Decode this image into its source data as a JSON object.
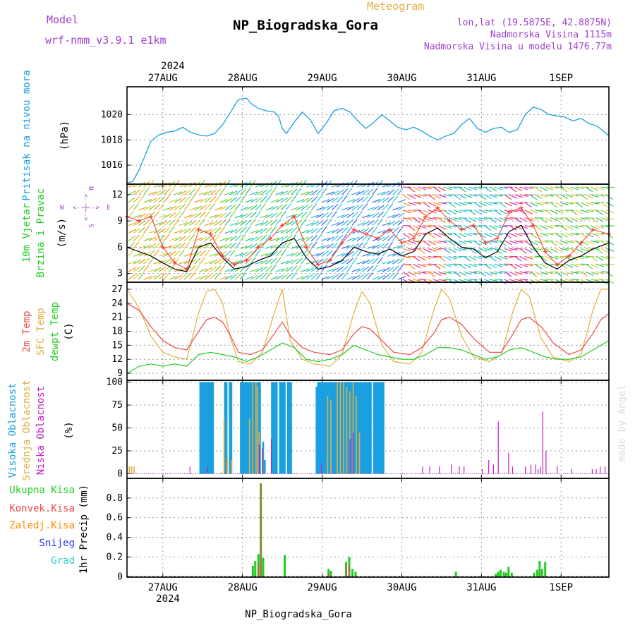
{
  "header": {
    "model_label": "Model",
    "model_name": "wrf-nmm_v3.9.1 e1km",
    "meteogram": "Meteogram",
    "station": "NP_Biogradska_Gora",
    "lonlat": "lon,lat (19.5875E, 42.8875N)",
    "elevation": "Nadmorska Visina 1115m",
    "model_elevation": "Nadmorska Visina u modelu 1476.77m",
    "year": "2024",
    "footer": "NP_Biogradska_Gora",
    "watermark": "made by Angel"
  },
  "colors": {
    "pressure": "#1aa0e0",
    "windspeed": "#000000",
    "gust": "#ff3030",
    "temp2m": "#f04848",
    "sfc_temp": "#e0b040",
    "dewpoint": "#22cc22",
    "cloud_high": "#1aa0e0",
    "cloud_mid": "#e0b040",
    "cloud_low": "#c020c0",
    "precip_total": "#22cc22",
    "precip_conv": "#f04848",
    "precip_frozen": "#ff8c00",
    "snow": "#3030ff",
    "hail": "#30d0d0"
  },
  "chart_data": [
    {
      "type": "line",
      "panel": "pressure",
      "ylabel": [
        "Pritisak na nivou mora",
        "(hPa)"
      ],
      "ylim": [
        1014.5,
        1022.2
      ],
      "yticks": [
        1016,
        1018,
        1020
      ],
      "x_dates": [
        "27AUG",
        "28AUG",
        "29AUG",
        "30AUG",
        "31AUG",
        "1SEP"
      ],
      "x_start_day": 26.55,
      "x_end_day": 32.6,
      "series": [
        {
          "x": [
            26.55,
            26.62,
            26.7,
            26.78,
            26.85,
            26.95,
            27.05,
            27.15,
            27.25,
            27.35,
            27.45,
            27.55,
            27.65,
            27.75,
            27.85,
            27.95,
            28.05,
            28.12,
            28.2,
            28.3,
            28.4,
            28.45,
            28.5,
            28.55,
            28.65,
            28.75,
            28.85,
            28.95,
            29.05,
            29.15,
            29.25,
            29.35,
            29.45,
            29.55,
            29.65,
            29.75,
            29.85,
            29.95,
            30.05,
            30.15,
            30.25,
            30.35,
            30.45,
            30.55,
            30.65,
            30.75,
            30.85,
            30.95,
            31.05,
            31.15,
            31.25,
            31.35,
            31.45,
            31.55,
            31.65,
            31.75,
            31.85,
            31.95,
            32.05,
            32.15,
            32.25,
            32.35,
            32.45,
            32.55,
            32.6
          ],
          "y": [
            1014.6,
            1014.7,
            1015.6,
            1016.8,
            1017.9,
            1018.4,
            1018.6,
            1018.7,
            1019.0,
            1018.6,
            1018.4,
            1018.3,
            1018.5,
            1019.2,
            1020.2,
            1021.2,
            1021.3,
            1020.8,
            1020.5,
            1020.3,
            1020.2,
            1019.9,
            1018.9,
            1018.5,
            1019.4,
            1020.2,
            1019.6,
            1018.5,
            1019.3,
            1020.3,
            1020.5,
            1020.2,
            1019.5,
            1018.9,
            1019.4,
            1020.0,
            1019.5,
            1019.0,
            1018.8,
            1019.0,
            1018.7,
            1018.3,
            1018.0,
            1018.3,
            1018.5,
            1019.2,
            1019.7,
            1018.9,
            1018.6,
            1018.9,
            1019.0,
            1018.6,
            1018.8,
            1020.0,
            1020.6,
            1020.4,
            1020.0,
            1019.9,
            1019.8,
            1019.5,
            1019.7,
            1019.3,
            1019.1,
            1018.6,
            1018.3
          ]
        }
      ]
    },
    {
      "type": "line",
      "panel": "wind",
      "ylabel": [
        "10m Vjetar",
        "Brzina i Pravac",
        "(m/s)"
      ],
      "compass": [
        "N",
        "<--|-->",
        "S",
        "W",
        "E"
      ],
      "ylim": [
        2.0,
        13.2
      ],
      "yticks": [
        3,
        6,
        9,
        12
      ],
      "series": [
        {
          "name": "speed",
          "x": [
            26.55,
            26.7,
            26.85,
            27.0,
            27.15,
            27.3,
            27.45,
            27.6,
            27.75,
            27.9,
            28.05,
            28.2,
            28.35,
            28.5,
            28.65,
            28.8,
            28.95,
            29.1,
            29.25,
            29.4,
            29.55,
            29.7,
            29.85,
            30.0,
            30.15,
            30.3,
            30.45,
            30.6,
            30.75,
            30.9,
            31.05,
            31.2,
            31.35,
            31.5,
            31.65,
            31.8,
            31.95,
            32.1,
            32.25,
            32.4,
            32.6
          ],
          "y": [
            6.0,
            5.5,
            5.0,
            4.2,
            3.5,
            3.2,
            6.0,
            6.5,
            4.8,
            3.5,
            3.8,
            4.5,
            5.0,
            6.5,
            7.0,
            4.8,
            3.5,
            3.8,
            4.5,
            6.0,
            5.5,
            5.2,
            5.8,
            5.0,
            5.5,
            7.5,
            8.2,
            7.0,
            6.0,
            5.8,
            4.8,
            5.5,
            7.8,
            8.5,
            6.0,
            4.2,
            3.5,
            4.5,
            5.0,
            5.8,
            6.5
          ]
        },
        {
          "name": "gust",
          "x": [
            26.55,
            26.7,
            26.85,
            27.0,
            27.15,
            27.3,
            27.45,
            27.6,
            27.75,
            27.9,
            28.05,
            28.2,
            28.35,
            28.5,
            28.65,
            28.8,
            28.95,
            29.1,
            29.25,
            29.4,
            29.55,
            29.7,
            29.85,
            30.0,
            30.15,
            30.3,
            30.45,
            30.6,
            30.75,
            30.9,
            31.05,
            31.2,
            31.35,
            31.5,
            31.65,
            31.8,
            31.95,
            32.1,
            32.25,
            32.4,
            32.6
          ],
          "y": [
            9.5,
            9.0,
            9.5,
            6.0,
            4.2,
            3.5,
            8.0,
            7.5,
            5.0,
            4.0,
            4.5,
            6.0,
            7.0,
            8.5,
            9.5,
            6.0,
            4.0,
            4.5,
            6.5,
            8.0,
            7.5,
            7.0,
            8.0,
            6.5,
            7.0,
            9.5,
            10.5,
            9.0,
            8.0,
            8.5,
            6.5,
            7.0,
            10.0,
            10.5,
            8.5,
            5.5,
            4.0,
            5.0,
            6.5,
            8.0,
            7.5
          ]
        }
      ]
    },
    {
      "type": "line",
      "panel": "temperature",
      "ylabel": [
        "2m Temp",
        "SFC Temp",
        "dewpt Temp",
        "(C)"
      ],
      "ylim": [
        7.5,
        28.5
      ],
      "yticks": [
        9,
        12,
        15,
        18,
        21,
        24,
        27
      ],
      "series": [
        {
          "name": "2m Temp",
          "x": [
            26.55,
            26.7,
            26.85,
            27.0,
            27.15,
            27.3,
            27.45,
            27.55,
            27.65,
            27.75,
            27.85,
            27.95,
            28.1,
            28.25,
            28.4,
            28.5,
            28.6,
            28.75,
            28.9,
            29.1,
            29.25,
            29.4,
            29.5,
            29.6,
            29.75,
            29.9,
            30.1,
            30.25,
            30.4,
            30.5,
            30.6,
            30.75,
            30.9,
            31.1,
            31.25,
            31.4,
            31.5,
            31.6,
            31.75,
            31.9,
            32.1,
            32.25,
            32.4,
            32.5,
            32.6
          ],
          "y": [
            24.0,
            22.5,
            19.0,
            16.0,
            14.5,
            14.0,
            18.0,
            20.5,
            21.0,
            20.0,
            17.0,
            13.5,
            13.0,
            14.0,
            17.5,
            20.0,
            17.0,
            14.5,
            13.5,
            13.0,
            14.0,
            17.5,
            19.0,
            18.5,
            16.0,
            13.5,
            13.0,
            14.5,
            17.5,
            20.5,
            21.0,
            19.5,
            16.5,
            13.5,
            13.5,
            17.5,
            20.5,
            21.0,
            19.0,
            15.5,
            13.0,
            14.0,
            17.5,
            20.5,
            21.8
          ]
        },
        {
          "name": "SFC Temp",
          "x": [
            26.55,
            26.7,
            26.85,
            27.0,
            27.15,
            27.3,
            27.45,
            27.55,
            27.65,
            27.75,
            27.85,
            27.95,
            28.1,
            28.25,
            28.4,
            28.5,
            28.6,
            28.75,
            28.9,
            29.1,
            29.25,
            29.4,
            29.5,
            29.6,
            29.75,
            29.9,
            30.1,
            30.25,
            30.4,
            30.5,
            30.6,
            30.75,
            30.9,
            31.1,
            31.25,
            31.4,
            31.5,
            31.6,
            31.75,
            31.9,
            32.1,
            32.25,
            32.4,
            32.5,
            32.6
          ],
          "y": [
            27.0,
            23.0,
            17.0,
            13.5,
            12.5,
            12.0,
            22.0,
            26.5,
            27.0,
            24.0,
            16.5,
            11.5,
            11.0,
            13.5,
            22.0,
            27.0,
            16.0,
            12.0,
            11.0,
            10.5,
            13.0,
            22.0,
            26.5,
            24.0,
            15.0,
            11.5,
            11.0,
            13.5,
            22.5,
            27.0,
            25.0,
            17.0,
            12.5,
            11.5,
            13.0,
            22.5,
            27.0,
            25.5,
            16.5,
            12.5,
            11.5,
            13.0,
            22.5,
            27.0,
            27.0
          ]
        },
        {
          "name": "dewpt Temp",
          "x": [
            26.55,
            26.7,
            26.85,
            27.0,
            27.15,
            27.3,
            27.45,
            27.6,
            27.75,
            27.9,
            28.05,
            28.2,
            28.35,
            28.5,
            28.65,
            28.8,
            28.95,
            29.1,
            29.25,
            29.4,
            29.55,
            29.7,
            29.85,
            30.0,
            30.15,
            30.3,
            30.45,
            30.6,
            30.75,
            30.9,
            31.05,
            31.2,
            31.35,
            31.5,
            31.65,
            31.8,
            31.95,
            32.1,
            32.25,
            32.4,
            32.6
          ],
          "y": [
            9.0,
            10.5,
            11.0,
            10.5,
            11.0,
            10.5,
            13.0,
            13.5,
            13.0,
            12.5,
            11.5,
            12.5,
            14.0,
            15.5,
            14.5,
            12.0,
            11.5,
            12.0,
            13.0,
            15.0,
            14.0,
            13.0,
            12.5,
            12.0,
            12.0,
            13.0,
            14.5,
            14.5,
            14.0,
            13.0,
            12.0,
            12.5,
            14.0,
            14.5,
            13.5,
            12.5,
            12.0,
            12.0,
            12.5,
            14.0,
            16.0
          ]
        }
      ]
    },
    {
      "type": "bar",
      "panel": "clouds",
      "ylabel": [
        "Visoka Oblacnost",
        "Srednja Oblacnost",
        "Niska Oblacnost",
        "(%)"
      ],
      "ylim": [
        -5,
        102
      ],
      "yticks": [
        0,
        25,
        50,
        75,
        100
      ],
      "high": {
        "x": [
          27.47,
          27.49,
          27.51,
          27.53,
          27.55,
          27.57,
          27.59,
          27.61,
          27.63,
          27.78,
          27.8,
          27.84,
          27.86,
          27.98,
          28.0,
          28.02,
          28.04,
          28.06,
          28.08,
          28.1,
          28.12,
          28.14,
          28.16,
          28.18,
          28.2,
          28.22,
          28.26,
          28.28,
          28.37,
          28.39,
          28.41,
          28.43,
          28.47,
          28.49,
          28.51,
          28.53,
          28.57,
          28.59,
          28.61,
          28.93,
          28.95,
          28.97,
          28.99,
          29.01,
          29.03,
          29.05,
          29.07,
          29.09,
          29.11,
          29.13,
          29.15,
          29.17,
          29.19,
          29.21,
          29.23,
          29.25,
          29.27,
          29.29,
          29.31,
          29.33,
          29.35,
          29.37,
          29.39,
          29.41,
          29.43,
          29.45,
          29.47,
          29.49,
          29.51,
          29.53,
          29.55,
          29.57,
          29.59,
          29.61,
          29.65,
          29.67,
          29.69,
          29.71,
          29.73,
          29.75,
          29.77
        ],
        "y": [
          100,
          100,
          100,
          100,
          100,
          100,
          100,
          100,
          100,
          100,
          100,
          100,
          100,
          100,
          100,
          100,
          100,
          100,
          100,
          100,
          100,
          100,
          100,
          100,
          100,
          100,
          35,
          15,
          100,
          100,
          100,
          100,
          100,
          100,
          100,
          100,
          100,
          100,
          100,
          95,
          100,
          100,
          100,
          100,
          100,
          100,
          100,
          100,
          100,
          100,
          100,
          100,
          100,
          100,
          100,
          100,
          100,
          100,
          100,
          100,
          100,
          100,
          100,
          100,
          100,
          100,
          100,
          100,
          100,
          100,
          100,
          100,
          100,
          100,
          100,
          100,
          100,
          100,
          100,
          100,
          100
        ]
      },
      "mid": {
        "x": [
          26.57,
          26.6,
          26.63,
          27.73,
          27.76,
          27.8,
          27.85,
          28.08,
          28.12,
          28.16,
          28.18,
          28.2,
          28.24,
          29.06,
          29.1,
          29.18,
          29.22,
          29.26,
          29.3,
          29.34,
          29.38,
          29.42,
          29.46
        ],
        "y": [
          8,
          8,
          8,
          2,
          60,
          18,
          15,
          60,
          100,
          100,
          95,
          45,
          28,
          85,
          80,
          100,
          100,
          100,
          95,
          90,
          100,
          85,
          45
        ]
      },
      "low": {
        "x": [
          27.35,
          27.57,
          28.22,
          28.26,
          28.37,
          29.0,
          29.36,
          29.4,
          30.27,
          30.36,
          30.48,
          30.63,
          30.73,
          30.79,
          31.02,
          31.1,
          31.16,
          31.22,
          31.35,
          31.4,
          31.56,
          31.63,
          31.69,
          31.72,
          31.75,
          31.78,
          31.82,
          31.96,
          32.14,
          32.4,
          32.45,
          32.5,
          32.56
        ],
        "y": [
          8,
          8,
          32,
          28,
          38,
          12,
          38,
          45,
          8,
          8,
          8,
          10,
          8,
          8,
          5,
          15,
          10,
          57,
          23,
          8,
          8,
          10,
          10,
          5,
          8,
          68,
          25,
          8,
          5,
          5,
          5,
          8,
          8
        ]
      }
    },
    {
      "type": "bar",
      "panel": "precipitation",
      "ylabel": [
        "1hr Precip (mm)"
      ],
      "legend": [
        "Ukupna Kisa",
        "Konvek.Kisa",
        "Zaledj.Kisa",
        "Snijeg",
        "Grad"
      ],
      "ylim": [
        -0.005,
        1.0
      ],
      "yticks": [
        0,
        0.2,
        0.4,
        0.6,
        0.8
      ],
      "total": {
        "x": [
          28.13,
          28.16,
          28.2,
          28.23,
          28.26,
          28.53,
          29.08,
          29.11,
          29.3,
          29.34,
          29.38,
          29.42,
          30.68,
          31.18,
          31.21,
          31.24,
          31.28,
          31.31,
          31.34,
          31.38,
          31.66,
          31.7,
          31.73,
          31.76,
          31.8
        ],
        "y": [
          0.11,
          0.16,
          0.23,
          0.95,
          0.19,
          0.22,
          0.08,
          0.06,
          0.15,
          0.2,
          0.08,
          0.05,
          0.05,
          0.03,
          0.05,
          0.07,
          0.05,
          0.04,
          0.1,
          0.04,
          0.04,
          0.07,
          0.16,
          0.08,
          0.15
        ]
      },
      "convective": {
        "x": [
          28.2,
          28.23,
          29.08,
          29.3,
          29.34
        ],
        "y": [
          0.13,
          0.95,
          0.04,
          0.1,
          0.12
        ]
      }
    }
  ]
}
